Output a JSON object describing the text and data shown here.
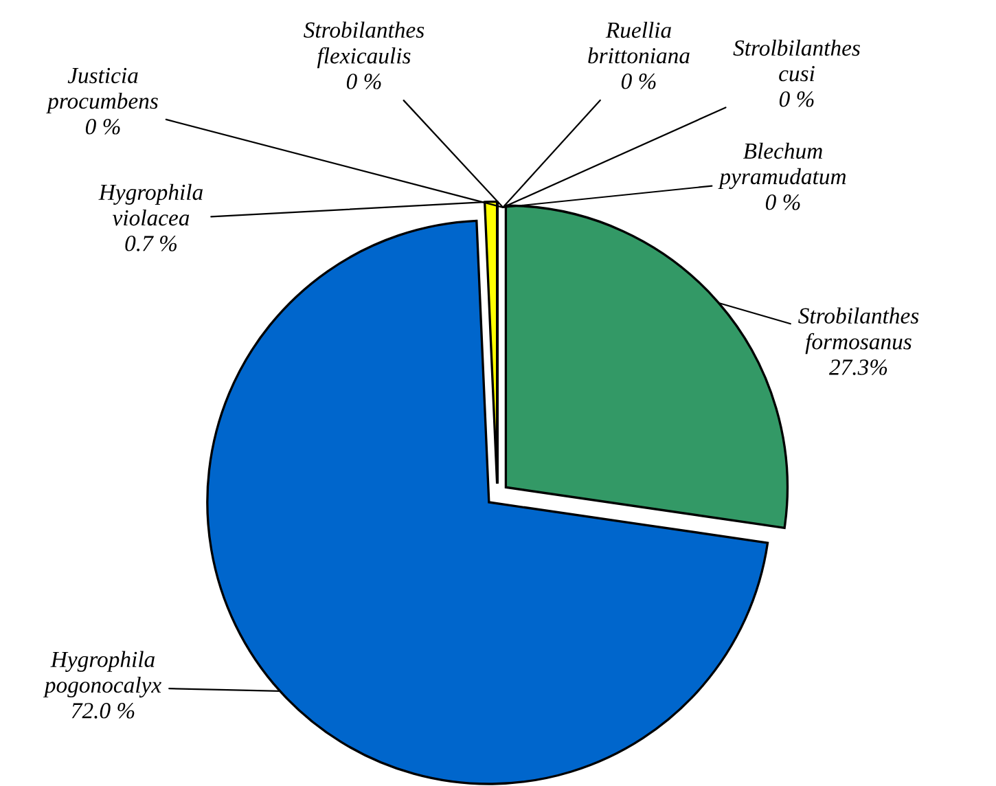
{
  "chart_data": {
    "type": "pie",
    "categories": [
      "Blechum\npyramudatum",
      "Strobilanthes\nformosanus",
      "Hygrophila\npogonocalyx",
      "Hygrophila\nviolacea",
      "Justicia\nprocumbens",
      "Strobilanthes\nflexicaulis",
      "Ruellia\nbrittoniana",
      "Strolbilanthes\ncusi"
    ],
    "values": [
      0,
      27.3,
      72.0,
      0.7,
      0,
      0,
      0,
      0
    ],
    "value_labels": [
      "0 %",
      "27.3%",
      "72.0 %",
      "0.7 %",
      "0 %",
      "0 %",
      "0 %",
      "0 %"
    ],
    "colors": [
      "#ff0000",
      "#339966",
      "#0066cc",
      "#ffff00",
      "#000000",
      "#99ccff",
      "#ff9900",
      "#800080"
    ],
    "legend": false
  }
}
